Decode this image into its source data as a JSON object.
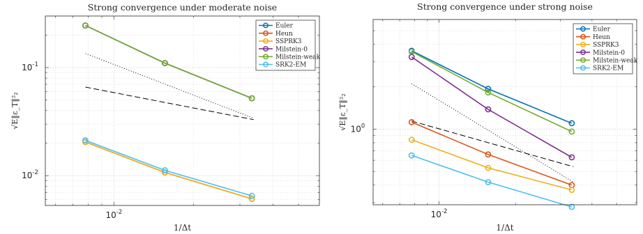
{
  "chart_data": [
    {
      "type": "line",
      "title": "Strong convergence under moderate noise",
      "xlabel": "1/Δt",
      "ylabel": "√E‖ε_T‖²₂",
      "xscale": "log",
      "yscale": "log",
      "xlim": [
        0.0055,
        0.06
      ],
      "ylim": [
        0.0053,
        0.3
      ],
      "grid": true,
      "legend_position": "top-right",
      "xticks": [
        {
          "value": 0.01,
          "base": "10",
          "exp": "-2"
        }
      ],
      "yticks": [
        {
          "value": 0.1,
          "base": "10",
          "exp": "-1"
        },
        {
          "value": 0.01,
          "base": "10",
          "exp": "-2"
        }
      ],
      "x": [
        0.0078,
        0.0156,
        0.0333
      ],
      "series": [
        {
          "name": "Euler",
          "color": "#0072BD",
          "values": [
            0.245,
            0.11,
            0.052
          ]
        },
        {
          "name": "Heun",
          "color": "#D95319",
          "values": [
            0.0205,
            0.0107,
            0.0061
          ]
        },
        {
          "name": "SSPRK3",
          "color": "#EDB120",
          "values": [
            0.0205,
            0.0107,
            0.0061
          ]
        },
        {
          "name": "Milstein-0",
          "color": "#7E2F8E",
          "values": [
            0.245,
            0.11,
            0.052
          ]
        },
        {
          "name": "Milstein-weak",
          "color": "#77AC30",
          "values": [
            0.245,
            0.11,
            0.052
          ]
        },
        {
          "name": "SRK2-EM",
          "color": "#4DBEEE",
          "values": [
            0.0212,
            0.0112,
            0.0065
          ]
        }
      ],
      "reference_lines": [
        {
          "style": "dotted",
          "x": [
            0.0078,
            0.0338
          ],
          "values": [
            0.135,
            0.034
          ]
        },
        {
          "style": "dashed",
          "x": [
            0.0078,
            0.0338
          ],
          "values": [
            0.066,
            0.033
          ]
        }
      ]
    },
    {
      "type": "line",
      "title": "Strong convergence under strong noise",
      "xlabel": "1/Δt",
      "ylabel": "√E‖ε_T‖²₂",
      "xscale": "log",
      "yscale": "log",
      "xlim": [
        0.0055,
        0.06
      ],
      "ylim": [
        0.29,
        6.0
      ],
      "grid": true,
      "legend_position": "top-right",
      "xticks": [
        {
          "value": 0.01,
          "base": "10",
          "exp": "-2"
        }
      ],
      "yticks": [
        {
          "value": 1,
          "base": "10",
          "exp": "0"
        }
      ],
      "x": [
        0.0078,
        0.0156,
        0.0333
      ],
      "series": [
        {
          "name": "Euler",
          "color": "#0072BD",
          "values": [
            3.6,
            1.93,
            1.1
          ]
        },
        {
          "name": "Heun",
          "color": "#D95319",
          "values": [
            1.12,
            0.66,
            0.4
          ]
        },
        {
          "name": "SSPRK3",
          "color": "#EDB120",
          "values": [
            0.84,
            0.53,
            0.37
          ]
        },
        {
          "name": "Milstein-0",
          "color": "#7E2F8E",
          "values": [
            3.25,
            1.38,
            0.63
          ]
        },
        {
          "name": "Milstein-weak",
          "color": "#77AC30",
          "values": [
            3.55,
            1.82,
            0.96
          ]
        },
        {
          "name": "SRK2-EM",
          "color": "#4DBEEE",
          "values": [
            0.65,
            0.42,
            0.28
          ]
        }
      ],
      "reference_lines": [
        {
          "style": "dotted",
          "x": [
            0.0078,
            0.0338
          ],
          "values": [
            2.1,
            0.42
          ]
        },
        {
          "style": "dashed",
          "x": [
            0.0078,
            0.0338
          ],
          "values": [
            1.14,
            0.54
          ]
        }
      ]
    }
  ]
}
